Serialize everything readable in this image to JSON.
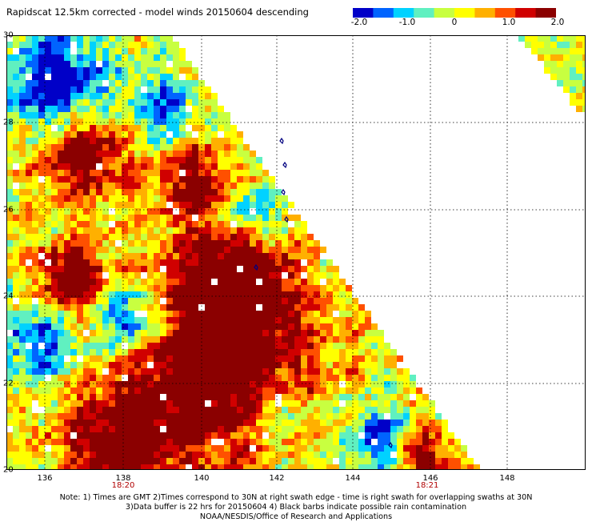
{
  "title": "Rapidscat 12.5km corrected - model winds 20150604 descending",
  "colorbar": {
    "labels": [
      "-2.0",
      "-1.0",
      "0",
      "1.0",
      "2.0"
    ],
    "min": -2.0,
    "max": 2.0,
    "colors": [
      "#0000c8",
      "#0064ff",
      "#00d2ff",
      "#60f0c0",
      "#c8ff40",
      "#ffff00",
      "#ffb000",
      "#ff5000",
      "#d00000",
      "#8b0000"
    ]
  },
  "map": {
    "lon_range": [
      135.5,
      150
    ],
    "lat_range": [
      20,
      30
    ],
    "y_ticks": [
      "30",
      "28",
      "26",
      "24",
      "22",
      "20"
    ],
    "x_ticks": [
      "136",
      "138",
      "140",
      "142",
      "144",
      "146",
      "148"
    ],
    "gridlines": true,
    "land_color": "#000080"
  },
  "times": [
    "18:20",
    "18:21"
  ],
  "notes": [
    "Note: 1) Times are GMT 2)Times correspond to 30N at right swath edge - time is right swath for overlapping swaths at 30N",
    "3)Data buffer is 22 hrs for 20150604 4) Black barbs indicate possible rain contamination",
    "NOAA/NESDIS/Office of Research and Applications"
  ]
}
